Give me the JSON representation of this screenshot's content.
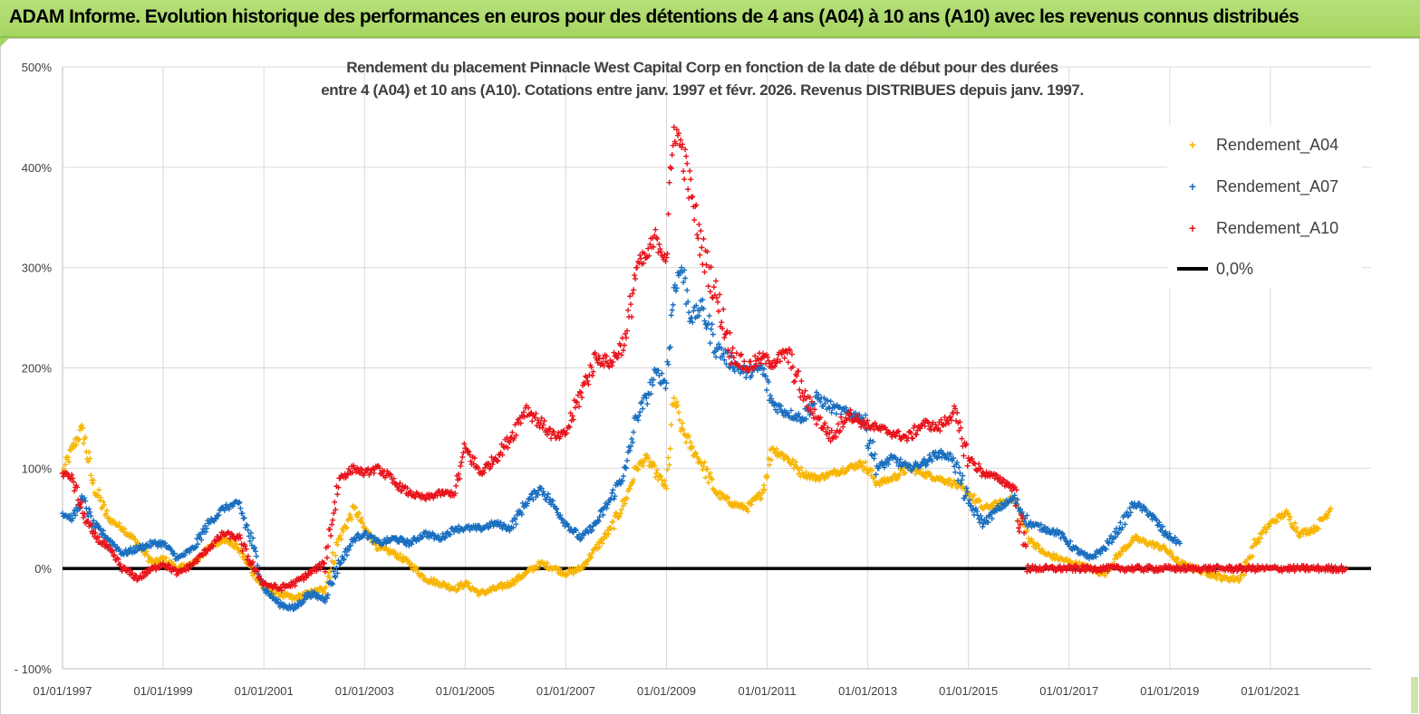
{
  "header": {
    "title": "ADAM Informe. Evolution historique des performances en euros pour des détentions de 4 ans (A04) à 10 ans (A10) avec les revenus connus distribués"
  },
  "colors": {
    "banner": "#a6d562",
    "A04": "#f7b500",
    "A07": "#1a6fbf",
    "A10": "#e8141c",
    "zero": "#000000",
    "grid": "#d9d9d9"
  },
  "chart_data": {
    "type": "scatter",
    "title_line1": "Rendement du placement Pinnacle West Capital Corp en fonction de la date de début pour des durées",
    "title_line2": "entre 4 (A04) et 10 ans (A10).  Cotations entre janv. 1997 et févr. 2026. Revenus DISTRIBUES depuis janv. 1997.",
    "xlabel": "",
    "ylabel": "",
    "xlim": [
      1997.0,
      2023.0
    ],
    "ylim": [
      -100,
      500
    ],
    "y_ticks": [
      -100,
      0,
      100,
      200,
      300,
      400,
      500
    ],
    "y_tick_labels": [
      "- 100%",
      "0%",
      "100%",
      "200%",
      "300%",
      "400%",
      "500%"
    ],
    "x_ticks": [
      1997,
      1999,
      2001,
      2003,
      2005,
      2007,
      2009,
      2011,
      2013,
      2015,
      2017,
      2019,
      2021
    ],
    "x_tick_labels": [
      "01/01/1997",
      "01/01/1999",
      "01/01/2001",
      "01/01/2003",
      "01/01/2005",
      "01/01/2007",
      "01/01/2009",
      "01/01/2011",
      "01/01/2013",
      "01/01/2015",
      "01/01/2017",
      "01/01/2019",
      "01/01/2021"
    ],
    "grid": true,
    "legend_position": "right",
    "series": [
      {
        "name": "Rendement_A04",
        "marker": "+",
        "x": [
          1997.0,
          1997.2,
          1997.4,
          1997.6,
          1997.9,
          1998.2,
          1998.5,
          1998.8,
          1999.0,
          1999.3,
          1999.6,
          1999.9,
          2000.2,
          2000.5,
          2000.8,
          2001.0,
          2001.3,
          2001.6,
          2001.9,
          2002.2,
          2002.5,
          2002.8,
          2003.0,
          2003.3,
          2003.6,
          2003.9,
          2004.2,
          2004.5,
          2004.8,
          2005.0,
          2005.3,
          2005.6,
          2005.9,
          2006.2,
          2006.5,
          2006.8,
          2007.0,
          2007.3,
          2007.6,
          2007.9,
          2008.2,
          2008.4,
          2008.6,
          2008.8,
          2009.0,
          2009.15,
          2009.3,
          2009.5,
          2009.7,
          2010.0,
          2010.3,
          2010.6,
          2010.9,
          2011.1,
          2011.4,
          2011.7,
          2012.0,
          2012.3,
          2012.6,
          2012.9,
          2013.2,
          2013.5,
          2013.8,
          2014.1,
          2014.4,
          2014.7,
          2015.0,
          2015.3,
          2015.6,
          2015.9,
          2016.2,
          2016.5,
          2016.8,
          2017.1,
          2017.4,
          2017.7,
          2018.0,
          2018.3,
          2018.6,
          2018.9,
          2019.2,
          2019.5,
          2019.8,
          2020.1,
          2020.4,
          2020.7,
          2021.0,
          2021.3,
          2021.6,
          2021.9,
          2022.2
        ],
        "y": [
          95,
          120,
          140,
          85,
          50,
          40,
          25,
          5,
          10,
          0,
          5,
          20,
          30,
          20,
          -5,
          -20,
          -25,
          -30,
          -25,
          -20,
          30,
          60,
          40,
          20,
          15,
          5,
          -10,
          -15,
          -20,
          -15,
          -25,
          -20,
          -15,
          -5,
          5,
          0,
          -5,
          0,
          20,
          40,
          70,
          100,
          110,
          95,
          80,
          170,
          140,
          120,
          105,
          75,
          65,
          60,
          75,
          120,
          110,
          95,
          90,
          95,
          100,
          105,
          85,
          90,
          100,
          95,
          90,
          85,
          75,
          60,
          65,
          70,
          30,
          15,
          10,
          5,
          0,
          -5,
          15,
          30,
          25,
          20,
          5,
          0,
          -5,
          -10,
          -10,
          25,
          45,
          55,
          35,
          40,
          60
        ]
      },
      {
        "name": "Rendement_A07",
        "marker": "+",
        "x": [
          1997.0,
          1997.2,
          1997.4,
          1997.6,
          1997.9,
          1998.2,
          1998.5,
          1998.8,
          1999.0,
          1999.3,
          1999.6,
          1999.9,
          2000.2,
          2000.5,
          2000.8,
          2001.0,
          2001.3,
          2001.6,
          2001.9,
          2002.2,
          2002.5,
          2002.8,
          2003.0,
          2003.3,
          2003.6,
          2003.9,
          2004.2,
          2004.5,
          2004.8,
          2005.0,
          2005.3,
          2005.6,
          2005.9,
          2006.2,
          2006.5,
          2006.8,
          2007.0,
          2007.3,
          2007.6,
          2007.9,
          2008.2,
          2008.4,
          2008.6,
          2008.8,
          2009.0,
          2009.15,
          2009.3,
          2009.5,
          2009.7,
          2010.0,
          2010.3,
          2010.6,
          2010.9,
          2011.1,
          2011.4,
          2011.7,
          2012.0,
          2012.3,
          2012.6,
          2012.9,
          2013.2,
          2013.5,
          2013.8,
          2014.1,
          2014.4,
          2014.7,
          2015.0,
          2015.3,
          2015.6,
          2015.9,
          2016.2,
          2016.5,
          2016.8,
          2017.1,
          2017.4,
          2017.7,
          2018.0,
          2018.3,
          2018.6,
          2018.9,
          2019.2
        ],
        "y": [
          55,
          50,
          70,
          45,
          30,
          15,
          20,
          25,
          25,
          10,
          20,
          45,
          60,
          65,
          20,
          -20,
          -35,
          -40,
          -25,
          -30,
          5,
          30,
          35,
          25,
          30,
          25,
          35,
          30,
          40,
          40,
          40,
          45,
          40,
          65,
          80,
          60,
          45,
          30,
          45,
          70,
          100,
          150,
          170,
          195,
          185,
          280,
          300,
          250,
          260,
          220,
          205,
          195,
          200,
          165,
          155,
          150,
          170,
          160,
          155,
          150,
          100,
          110,
          100,
          105,
          115,
          110,
          65,
          45,
          60,
          70,
          45,
          40,
          35,
          20,
          10,
          20,
          40,
          65,
          55,
          35,
          25
        ]
      },
      {
        "name": "Rendement_A10",
        "marker": "+",
        "x": [
          1997.0,
          1997.2,
          1997.4,
          1997.6,
          1997.9,
          1998.2,
          1998.5,
          1998.8,
          1999.0,
          1999.3,
          1999.6,
          1999.9,
          2000.2,
          2000.5,
          2000.8,
          2001.0,
          2001.3,
          2001.6,
          2001.9,
          2002.2,
          2002.5,
          2002.8,
          2003.0,
          2003.3,
          2003.6,
          2003.9,
          2004.2,
          2004.5,
          2004.8,
          2005.0,
          2005.3,
          2005.6,
          2005.9,
          2006.2,
          2006.5,
          2006.8,
          2007.0,
          2007.3,
          2007.6,
          2007.9,
          2008.2,
          2008.4,
          2008.6,
          2008.8,
          2009.0,
          2009.15,
          2009.3,
          2009.5,
          2009.7,
          2010.0,
          2010.3,
          2010.6,
          2010.9,
          2011.1,
          2011.4,
          2011.7,
          2012.0,
          2012.3,
          2012.6,
          2012.9,
          2013.2,
          2013.5,
          2013.8,
          2014.1,
          2014.4,
          2014.7,
          2015.0,
          2015.3,
          2015.6,
          2015.9,
          2016.2,
          2016.6,
          2017.0,
          2017.5,
          2018.0,
          2018.5,
          2019.0,
          2019.5,
          2020.0,
          2020.5,
          2021.0,
          2021.5,
          2022.0,
          2022.5
        ],
        "y": [
          95,
          90,
          55,
          35,
          20,
          0,
          -10,
          0,
          5,
          -5,
          5,
          20,
          35,
          30,
          0,
          -15,
          -20,
          -15,
          -5,
          5,
          90,
          100,
          95,
          100,
          85,
          75,
          70,
          75,
          75,
          120,
          95,
          110,
          130,
          160,
          145,
          130,
          135,
          175,
          210,
          205,
          230,
          300,
          310,
          330,
          310,
          440,
          420,
          370,
          320,
          270,
          215,
          200,
          210,
          205,
          215,
          175,
          150,
          130,
          155,
          145,
          140,
          135,
          130,
          145,
          140,
          155,
          110,
          95,
          90,
          80,
          0,
          0,
          0,
          0,
          0,
          0,
          0,
          0,
          0,
          0,
          0,
          0,
          0,
          0
        ]
      },
      {
        "name": "0,0%",
        "marker": "line",
        "x": [
          1997.0,
          2023.0
        ],
        "y": [
          0,
          0
        ]
      }
    ]
  }
}
